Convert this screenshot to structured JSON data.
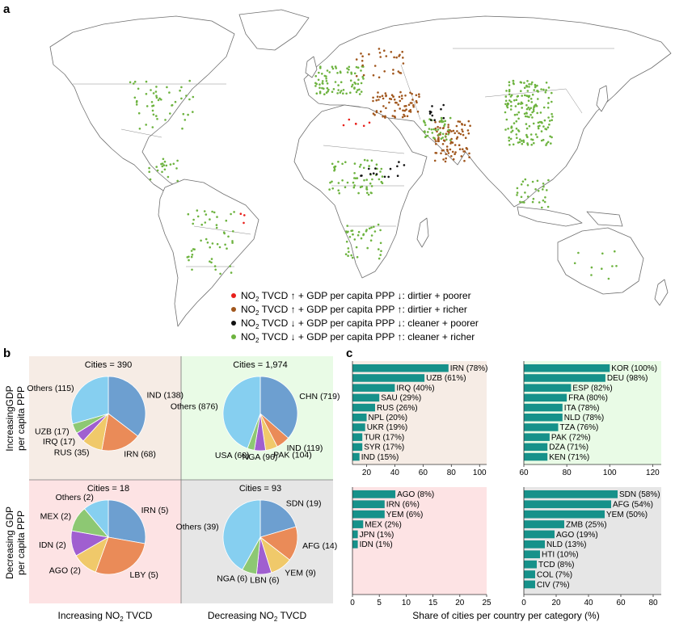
{
  "colors": {
    "dirtier_poorer": "#e8201b",
    "dirtier_richer": "#a0561c",
    "cleaner_poorer": "#111111",
    "cleaner_richer": "#6db33f",
    "bar": "#16918a",
    "bg_increasing_increasing": "#f6ece5",
    "bg_increasing_decreasing": "#e9fbe6",
    "bg_decreasing_increasing": "#fde3e4",
    "bg_decreasing_decreasing": "#e6e6e6",
    "pie_main": "#6d9fd0",
    "pie_second": "#ea8b58",
    "pie_third": "#f0c96a",
    "pie_fourth": "#a05fd0",
    "pie_fifth": "#8dc873",
    "pie_others": "#86cff0"
  },
  "panel_labels": {
    "a": "a",
    "b": "b",
    "c": "c"
  },
  "legend": [
    {
      "key": "dirtier_poorer",
      "no2": "NO",
      "sub": "2",
      "text": " TVCD ↑ + GDP per capita PPP ↓: dirtier + poorer"
    },
    {
      "key": "dirtier_richer",
      "no2": "NO",
      "sub": "2",
      "text": " TVCD ↑ + GDP per capita PPP ↑: dirtier + richer"
    },
    {
      "key": "cleaner_poorer",
      "no2": "NO",
      "sub": "2",
      "text": " TVCD ↓ + GDP per capita PPP ↓: cleaner + poorer"
    },
    {
      "key": "cleaner_richer",
      "no2": "NO",
      "sub": "2",
      "text": " TVCD ↓ + GDP per capita PPP ↑: cleaner + richer"
    }
  ],
  "row_labels": {
    "top_line1": "IncreasingGDP",
    "top_line2": "per capita PPP",
    "bottom_line1": "Decreasing GDP",
    "bottom_line2": "per capita PPP"
  },
  "col_labels": {
    "left": {
      "pre": "Increasing NO",
      "sub": "2",
      "post": " TVCD"
    },
    "right": {
      "pre": "Decreasing NO",
      "sub": "2",
      "post": " TVCD"
    }
  },
  "x_axis_title": "Share of cities per country per category (%)",
  "chart_data": [
    {
      "type": "pie",
      "title": "Cities = 390",
      "slices": [
        {
          "label": "IND (138)",
          "value": 138
        },
        {
          "label": "IRN (68)",
          "value": 68
        },
        {
          "label": "RUS (35)",
          "value": 35
        },
        {
          "label": "IRQ (17)",
          "value": 17
        },
        {
          "label": "UZB (17)",
          "value": 17
        },
        {
          "label": "Others (115)",
          "value": 115
        }
      ]
    },
    {
      "type": "pie",
      "title": "Cities = 1,974",
      "slices": [
        {
          "label": "CHN (719)",
          "value": 719
        },
        {
          "label": "IND (119)",
          "value": 119
        },
        {
          "label": "PAK (104)",
          "value": 104
        },
        {
          "label": "NGA (96)",
          "value": 96
        },
        {
          "label": "USA (60)",
          "value": 60
        },
        {
          "label": "Others (876)",
          "value": 876
        }
      ]
    },
    {
      "type": "pie",
      "title": "Cities = 18",
      "slices": [
        {
          "label": "IRN (5)",
          "value": 5
        },
        {
          "label": "LBY (5)",
          "value": 5
        },
        {
          "label": "AGO (2)",
          "value": 2
        },
        {
          "label": "IDN (2)",
          "value": 2
        },
        {
          "label": "MEX (2)",
          "value": 2
        },
        {
          "label": "Others (2)",
          "value": 2
        }
      ]
    },
    {
      "type": "pie",
      "title": "Cities = 93",
      "slices": [
        {
          "label": "SDN (19)",
          "value": 19
        },
        {
          "label": "AFG (14)",
          "value": 14
        },
        {
          "label": "YEM (9)",
          "value": 9
        },
        {
          "label": "LBN (6)",
          "value": 6
        },
        {
          "label": "NGA (6)",
          "value": 6
        },
        {
          "label": "Others (39)",
          "value": 39
        }
      ]
    },
    {
      "type": "bar",
      "orientation": "horizontal",
      "categories": [
        "IRN (78%)",
        "UZB (61%)",
        "IRQ (40%)",
        "SAU (29%)",
        "RUS (26%)",
        "NPL (20%)",
        "UKR (19%)",
        "TUR (17%)",
        "SYR (17%)",
        "IND (15%)"
      ],
      "values": [
        78,
        61,
        40,
        29,
        26,
        20,
        19,
        17,
        17,
        15
      ],
      "xlim": [
        10,
        105
      ],
      "xticks": [
        20,
        40,
        60,
        80,
        100
      ]
    },
    {
      "type": "bar",
      "orientation": "horizontal",
      "categories": [
        "KOR (100%)",
        "DEU (98%)",
        "ESP (82%)",
        "FRA (80%)",
        "ITA (78%)",
        "NLD (78%)",
        "TZA (76%)",
        "PAK (72%)",
        "DZA (71%)",
        "KEN (71%)"
      ],
      "values": [
        100,
        98,
        82,
        80,
        78,
        78,
        76,
        72,
        71,
        71
      ],
      "xlim": [
        60,
        124
      ],
      "xticks": [
        60,
        80,
        100,
        120
      ]
    },
    {
      "type": "bar",
      "orientation": "horizontal",
      "categories": [
        "AGO (8%)",
        "IRN (6%)",
        "YEM (6%)",
        "MEX (2%)",
        "JPN (1%)",
        "IDN (1%)"
      ],
      "values": [
        8,
        6,
        6,
        2,
        1,
        1
      ],
      "xlim": [
        0,
        25
      ],
      "xticks": [
        0,
        5,
        10,
        15,
        20,
        25
      ]
    },
    {
      "type": "bar",
      "orientation": "horizontal",
      "categories": [
        "SDN (58%)",
        "AFG (54%)",
        "YEM (50%)",
        "ZMB (25%)",
        "AGO (19%)",
        "NLD (13%)",
        "HTI (10%)",
        "TCD (8%)",
        "COL (7%)",
        "CIV (7%)"
      ],
      "values": [
        58,
        54,
        50,
        25,
        19,
        13,
        10,
        8,
        7,
        7
      ],
      "xlim": [
        0,
        85
      ],
      "xticks": [
        0,
        20,
        40,
        60,
        80
      ]
    }
  ]
}
